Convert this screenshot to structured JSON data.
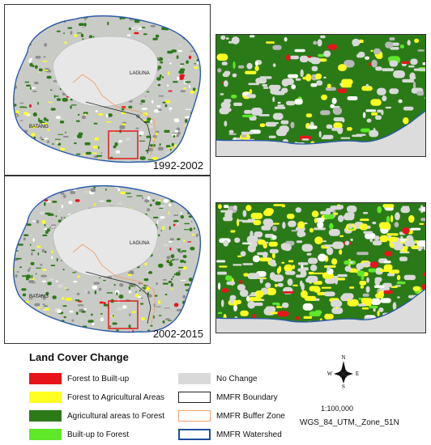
{
  "panels": {
    "top_period": "1992-2002",
    "bottom_period": "2002-2015",
    "place_laguna": "LAGUNA",
    "place_batangas": "BATANG"
  },
  "legend": {
    "title": "Land Cover Change",
    "items": [
      {
        "label": "Forest to Built-up",
        "color": "#e8141b"
      },
      {
        "label": "Forest to Agricultural Areas",
        "color": "#ffff22"
      },
      {
        "label": "Agricultural areas to Forest",
        "color": "#2b7a18"
      },
      {
        "label": "Built-up to Forest",
        "color": "#5ee828"
      },
      {
        "label": "No Change",
        "color": "#d9d9d9"
      },
      {
        "label": "MMFR Boundary",
        "color": "#222222"
      },
      {
        "label": "MMFR Buffer Zone",
        "color": "#f0a16a"
      },
      {
        "label": "MMFR Watershed",
        "color": "#1f4e9c"
      }
    ]
  },
  "compass": {
    "n": "N",
    "s": "S",
    "e": "E",
    "w": "W"
  },
  "scale": "1:100,000",
  "projection": "WGS_84_UTM,_Zone_51N"
}
